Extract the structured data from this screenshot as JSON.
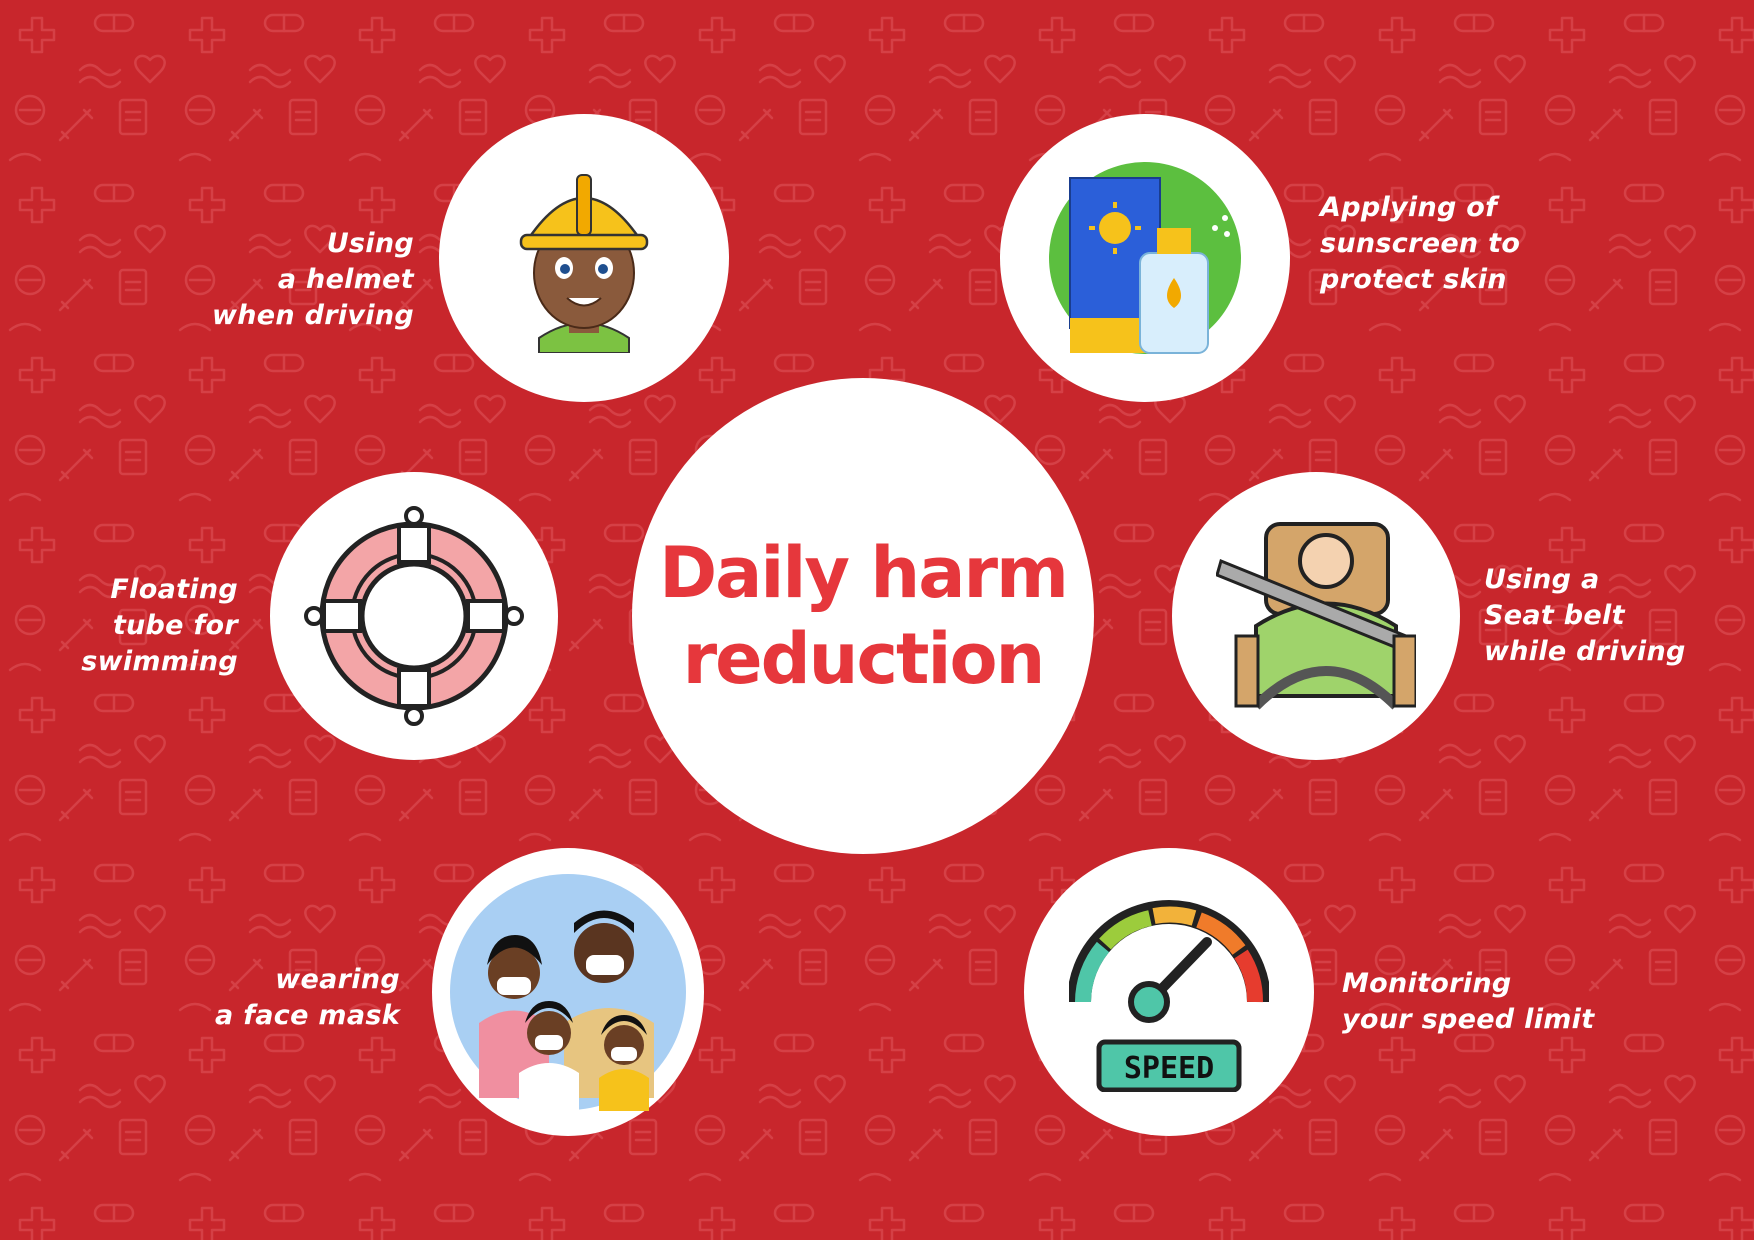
{
  "colors": {
    "background": "#c8262c",
    "pattern": "#d9454a",
    "title": "#e6373c",
    "label": "#ffffff",
    "circle": "#ffffff"
  },
  "title": {
    "line1": "Daily harm",
    "line2": "reduction"
  },
  "items": [
    {
      "icon": "helmet-worker-icon",
      "lines": [
        "Using",
        "a helmet",
        "when driving"
      ]
    },
    {
      "icon": "sunscreen-icon",
      "lines": [
        "Applying of",
        "sunscreen to",
        "protect skin"
      ]
    },
    {
      "icon": "lifebuoy-icon",
      "lines": [
        "Floating",
        "tube for",
        "swimming"
      ]
    },
    {
      "icon": "seat-belt-icon",
      "lines": [
        "Using a",
        "Seat belt",
        "while driving"
      ]
    },
    {
      "icon": "face-mask-family-icon",
      "lines": [
        "wearing",
        "a face mask"
      ]
    },
    {
      "icon": "speedometer-icon",
      "lines": [
        "Monitoring",
        "your speed limit"
      ]
    },
    {
      "icon": "speed-badge-text",
      "lines": [
        "SPEED"
      ]
    }
  ]
}
